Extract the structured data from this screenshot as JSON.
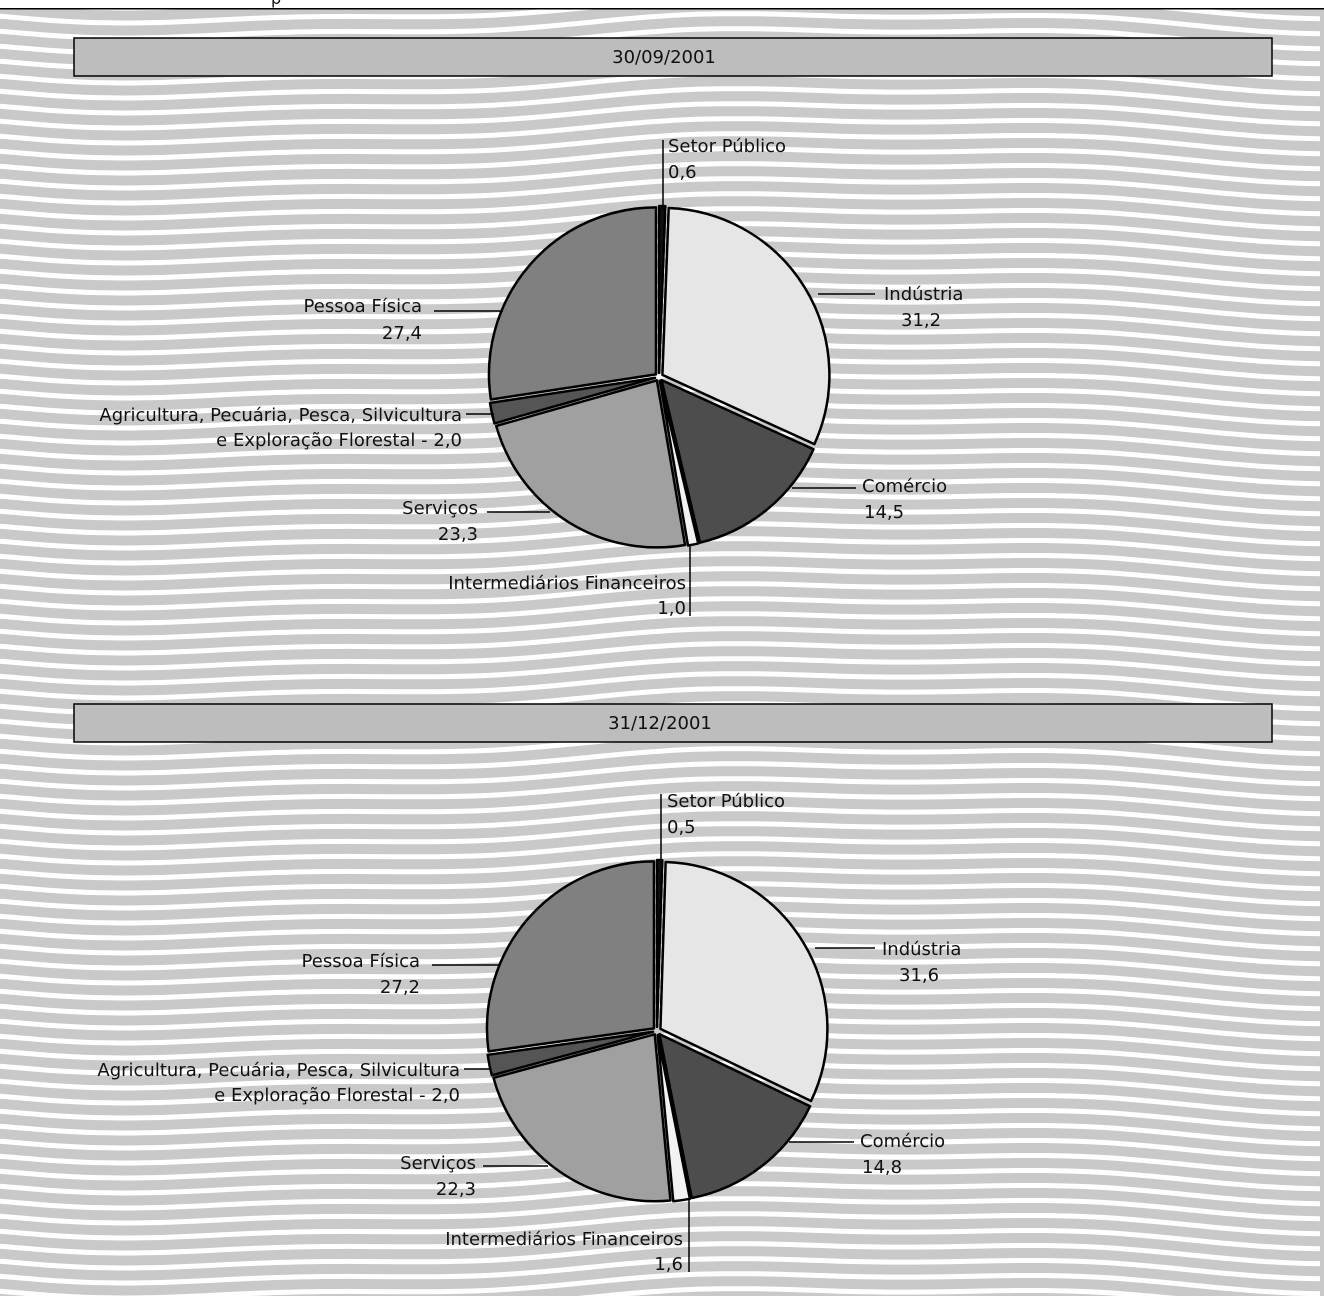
{
  "header": {
    "text": "p"
  },
  "chart_data": [
    {
      "type": "pie",
      "title": "30/09/2001",
      "slices": [
        {
          "label": "Setor Público",
          "value": 0.6,
          "color": "#111111",
          "label_text": [
            "Setor Público",
            "0,6"
          ]
        },
        {
          "label": "Indústria",
          "value": 31.2,
          "color": "#e6e6e6",
          "label_text": [
            "Indústria",
            "31,2"
          ]
        },
        {
          "label": "Comércio",
          "value": 14.5,
          "color": "#4d4d4d",
          "label_text": [
            "Comércio",
            "14,5"
          ]
        },
        {
          "label": "Intermediários Financeiros",
          "value": 1.0,
          "color": "#f2f2f2",
          "label_text": [
            "Intermediários Financeiros",
            "1,0"
          ]
        },
        {
          "label": "Serviços",
          "value": 23.3,
          "color": "#a0a0a0",
          "label_text": [
            "Serviços",
            "23,3"
          ]
        },
        {
          "label": "Agricultura, Pecuária, Pesca, Silvicultura e Exploração Florestal",
          "value": 2.0,
          "color": "#555555",
          "label_text": [
            "Agricultura, Pecuária, Pesca, Silvicultura",
            "e Exploração Florestal - 2,0"
          ]
        },
        {
          "label": "Pessoa Física",
          "value": 27.4,
          "color": "#808080",
          "label_text": [
            "Pessoa Física",
            "27,4"
          ]
        }
      ]
    },
    {
      "type": "pie",
      "title": "31/12/2001",
      "slices": [
        {
          "label": "Setor Público",
          "value": 0.5,
          "color": "#111111",
          "label_text": [
            "Setor Público",
            "0,5"
          ]
        },
        {
          "label": "Indústria",
          "value": 31.6,
          "color": "#e6e6e6",
          "label_text": [
            "Indústria",
            "31,6"
          ]
        },
        {
          "label": "Comércio",
          "value": 14.8,
          "color": "#4d4d4d",
          "label_text": [
            "Comércio",
            "14,8"
          ]
        },
        {
          "label": "Intermediários Financeiros",
          "value": 1.6,
          "color": "#f2f2f2",
          "label_text": [
            "Intermediários Financeiros",
            "1,6"
          ]
        },
        {
          "label": "Serviços",
          "value": 22.3,
          "color": "#a0a0a0",
          "label_text": [
            "Serviços",
            "22,3"
          ]
        },
        {
          "label": "Agricultura, Pecuária, Pesca, Silvicultura e Exploração Florestal",
          "value": 2.0,
          "color": "#555555",
          "label_text": [
            "Agricultura, Pecuária, Pesca, Silvicultura",
            "e Exploração Florestal - 2,0"
          ]
        },
        {
          "label": "Pessoa Física",
          "value": 27.2,
          "color": "#808080",
          "label_text": [
            "Pessoa Física",
            "27,2"
          ]
        }
      ]
    }
  ]
}
